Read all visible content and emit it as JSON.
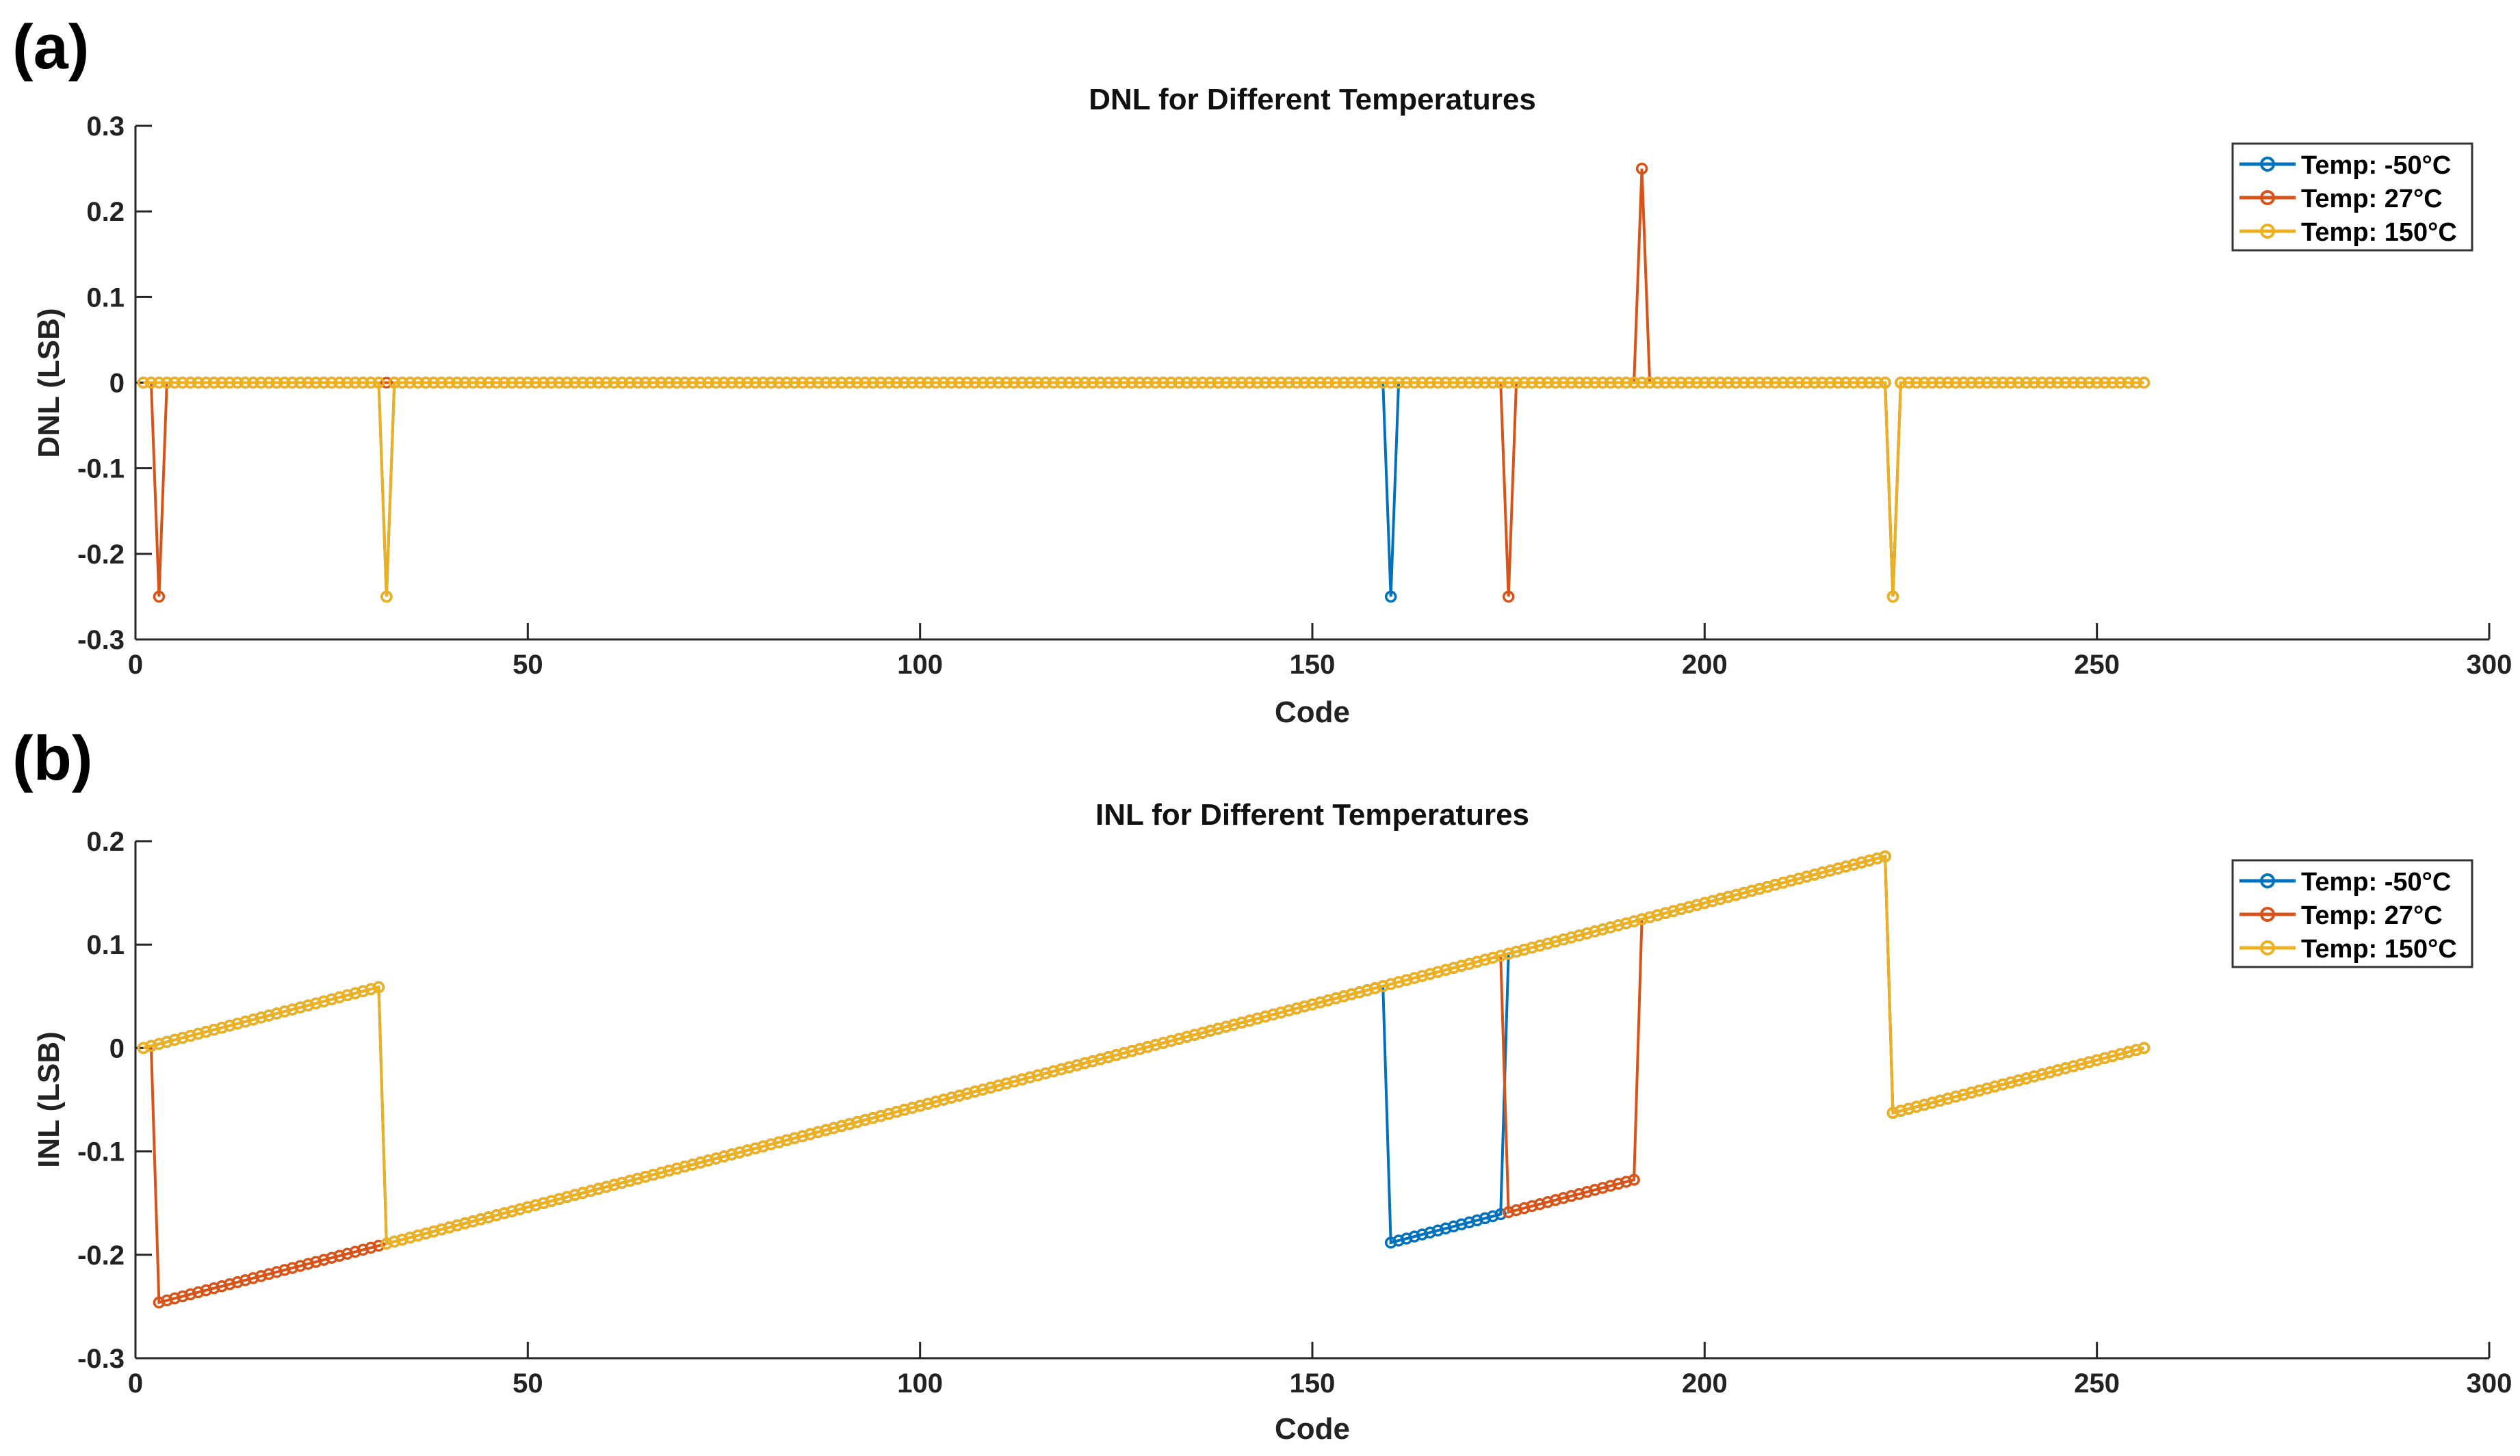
{
  "panel_labels": [
    "(a)",
    "(b)"
  ],
  "colors": {
    "-50": "#0072BD",
    "27": "#D95319",
    "150": "#EDB120"
  },
  "chart_data": [
    {
      "type": "line",
      "title": "DNL for Different Temperatures",
      "xlabel": "Code",
      "ylabel": "DNL (LSB)",
      "xlim": [
        0,
        300
      ],
      "ylim": [
        -0.3,
        0.3
      ],
      "xticks": [
        0,
        50,
        100,
        150,
        200,
        250,
        300
      ],
      "xtick_labels": [
        "0",
        "50",
        "100",
        "150",
        "200",
        "250",
        "300"
      ],
      "yticks": [
        -0.3,
        -0.2,
        -0.1,
        0,
        0.1,
        0.2,
        0.3
      ],
      "ytick_labels": [
        "-0.3",
        "-0.2",
        "-0.1",
        "0",
        "0.1",
        "0.2",
        "0.3"
      ],
      "grid": false,
      "legend_position": "top-right",
      "x_range": [
        1,
        256
      ],
      "series": [
        {
          "name": "Temp: -50°C",
          "color": "#0072BD",
          "baseline": 0,
          "spikes": [
            [
              32,
              -0.25
            ],
            [
              160,
              -0.25
            ],
            [
              224,
              -0.25
            ]
          ]
        },
        {
          "name": "Temp: 27°C",
          "color": "#D95319",
          "baseline": 0,
          "spikes": [
            [
              3,
              -0.25
            ],
            [
              175,
              -0.25
            ],
            [
              192,
              0.25
            ],
            [
              224,
              -0.25
            ]
          ]
        },
        {
          "name": "Temp: 150°C",
          "color": "#EDB120",
          "baseline": 0,
          "spikes": [
            [
              32,
              -0.25
            ],
            [
              224,
              -0.25
            ]
          ]
        }
      ]
    },
    {
      "type": "line",
      "title": "INL for Different Temperatures",
      "xlabel": "Code",
      "ylabel": "INL (LSB)",
      "xlim": [
        0,
        300
      ],
      "ylim": [
        -0.3,
        0.2
      ],
      "xticks": [
        0,
        50,
        100,
        150,
        200,
        250,
        300
      ],
      "xtick_labels": [
        "0",
        "50",
        "100",
        "150",
        "200",
        "250",
        "300"
      ],
      "yticks": [
        -0.3,
        -0.2,
        -0.1,
        0,
        0.1,
        0.2
      ],
      "ytick_labels": [
        "-0.3",
        "-0.2",
        "-0.1",
        "0",
        "0.1",
        "0.2"
      ],
      "grid": false,
      "legend_position": "top-right",
      "x_range": [
        1,
        256
      ],
      "slope_per_code": 0.0019608,
      "series": [
        {
          "name": "Temp: -50°C",
          "color": "#0072BD",
          "pieces": [
            [
              1,
              31,
              0
            ],
            [
              32,
              159,
              -0.25
            ],
            [
              160,
              174,
              -0.5
            ],
            [
              175,
              223,
              -0.25
            ],
            [
              224,
              256,
              -0.5
            ]
          ]
        },
        {
          "name": "Temp: 27°C",
          "color": "#D95319",
          "pieces": [
            [
              1,
              2,
              0
            ],
            [
              3,
              174,
              -0.25
            ],
            [
              175,
              191,
              -0.5
            ],
            [
              192,
              223,
              -0.25
            ],
            [
              224,
              256,
              -0.5
            ]
          ]
        },
        {
          "name": "Temp: 150°C",
          "color": "#EDB120",
          "pieces": [
            [
              1,
              31,
              0
            ],
            [
              32,
              223,
              -0.25
            ],
            [
              224,
              256,
              -0.5
            ]
          ]
        }
      ]
    }
  ]
}
